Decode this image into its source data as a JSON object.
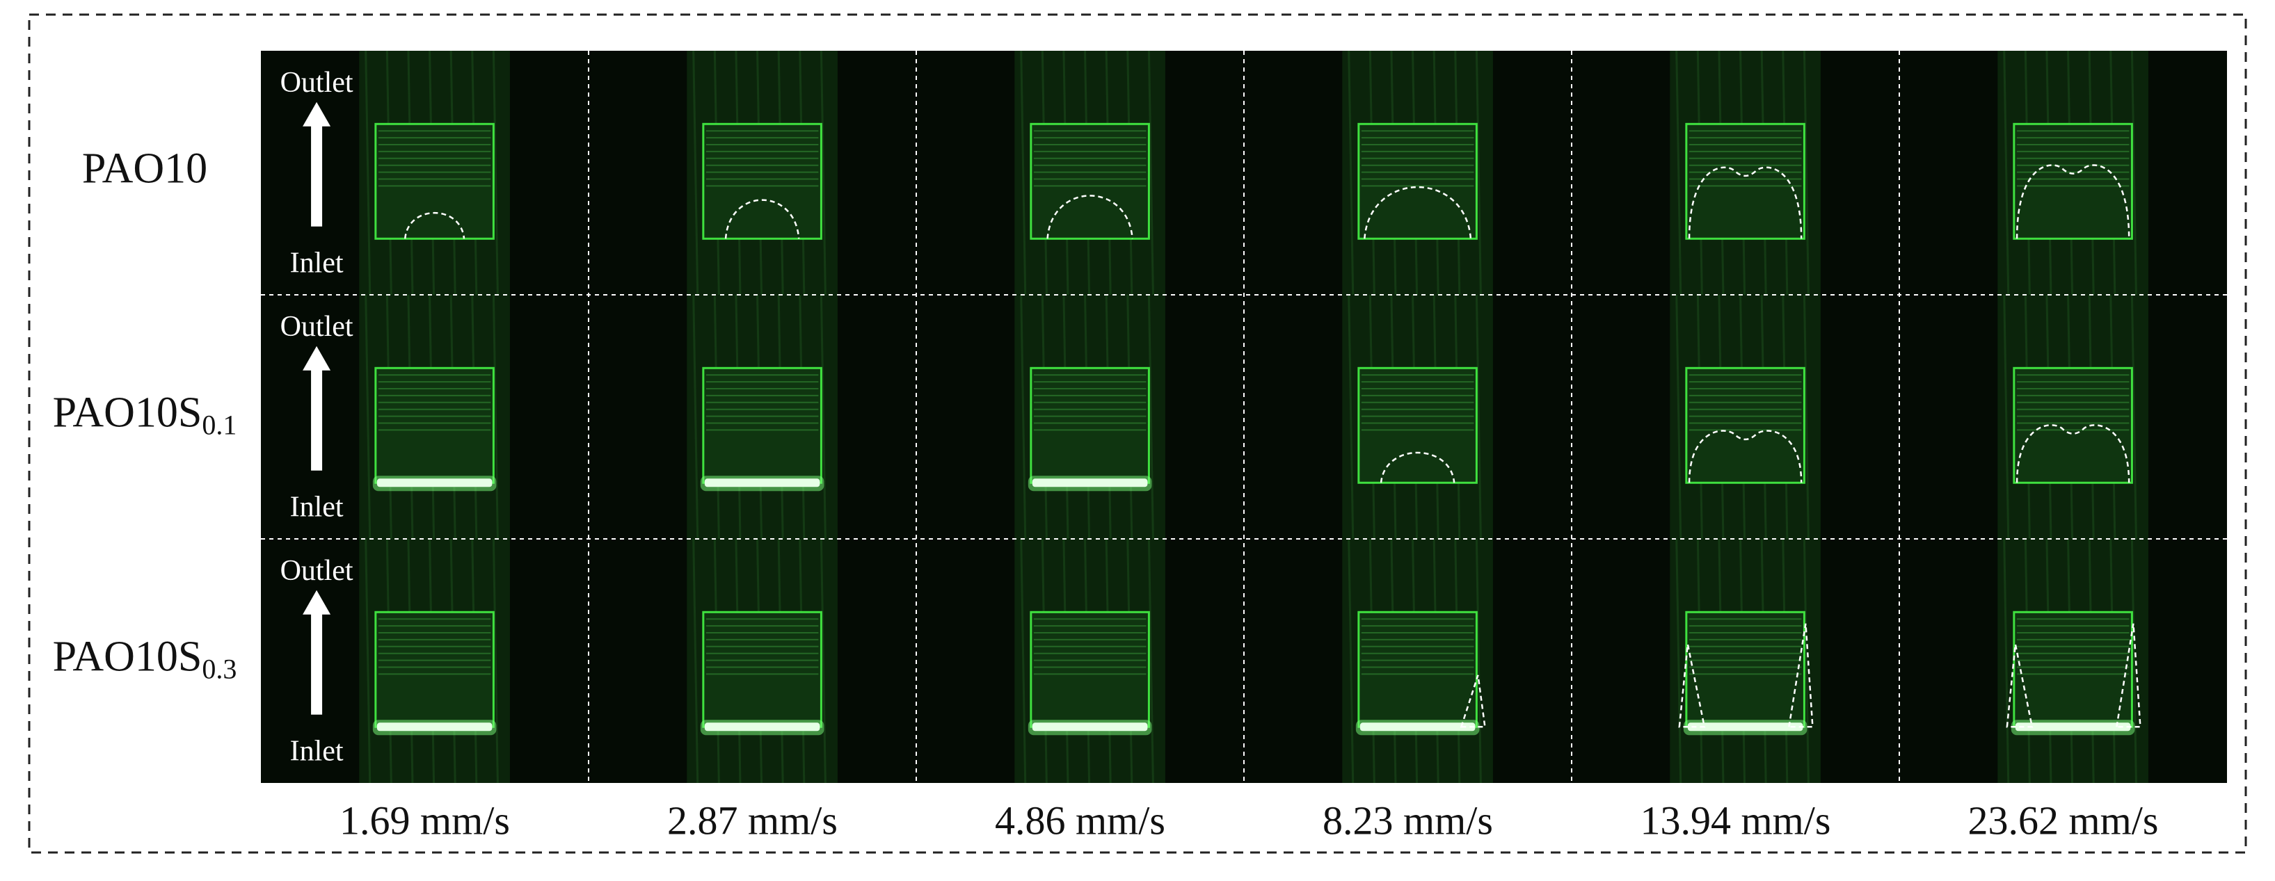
{
  "figure": {
    "rows": [
      {
        "base": "PAO10",
        "sub": null
      },
      {
        "base": "PAO10S",
        "sub": "0.1"
      },
      {
        "base": "PAO10S",
        "sub": "0.3"
      }
    ],
    "columns": [
      "1.69 mm/s",
      "2.87 mm/s",
      "4.86 mm/s",
      "8.23 mm/s",
      "13.94 mm/s",
      "23.62 mm/s"
    ],
    "flow_labels": {
      "outlet": "Outlet",
      "inlet": "Inlet"
    }
  }
}
